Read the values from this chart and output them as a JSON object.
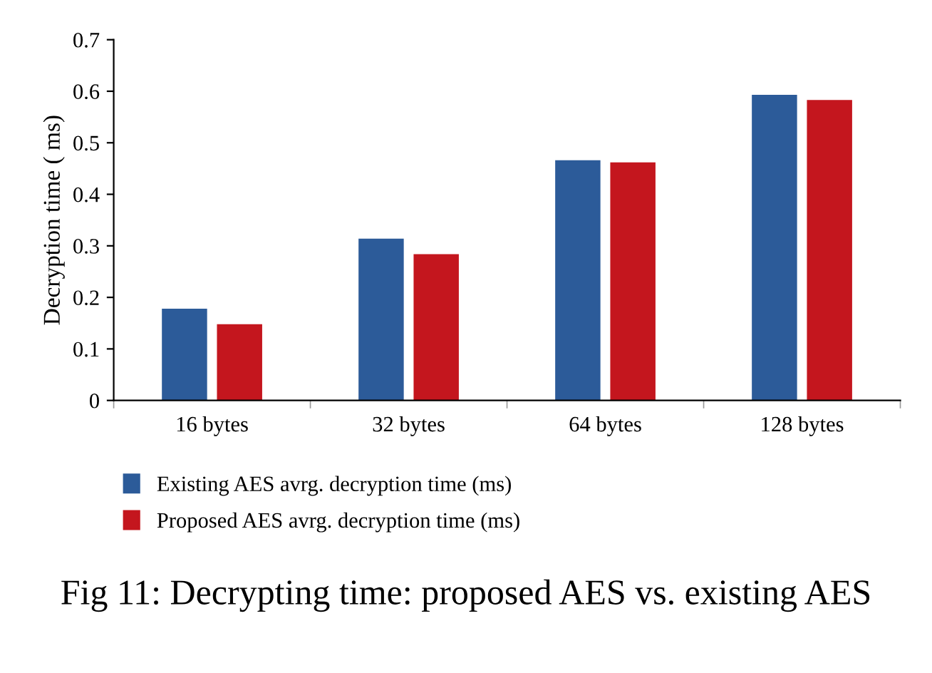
{
  "chart_data": {
    "type": "bar",
    "ylabel": "Decryption time ( ms)",
    "categories": [
      "16 bytes",
      "32 bytes",
      "64 bytes",
      "128 bytes"
    ],
    "series": [
      {
        "name": "Existing AES avrg. decryption time (ms)",
        "color": "#2c5b99",
        "values": [
          0.178,
          0.314,
          0.466,
          0.593
        ]
      },
      {
        "name": "Proposed AES avrg. decryption time (ms)",
        "color": "#c4161e",
        "values": [
          0.148,
          0.284,
          0.462,
          0.583
        ]
      }
    ],
    "ylim": [
      0,
      0.7
    ],
    "yticks": [
      0,
      0.1,
      0.2,
      0.3,
      0.4,
      0.5,
      0.6,
      0.7
    ],
    "grid": false,
    "legend": "bottom left",
    "annotations": [
      "Fig 11: Decrypting time: proposed AES vs. existing AES"
    ]
  }
}
